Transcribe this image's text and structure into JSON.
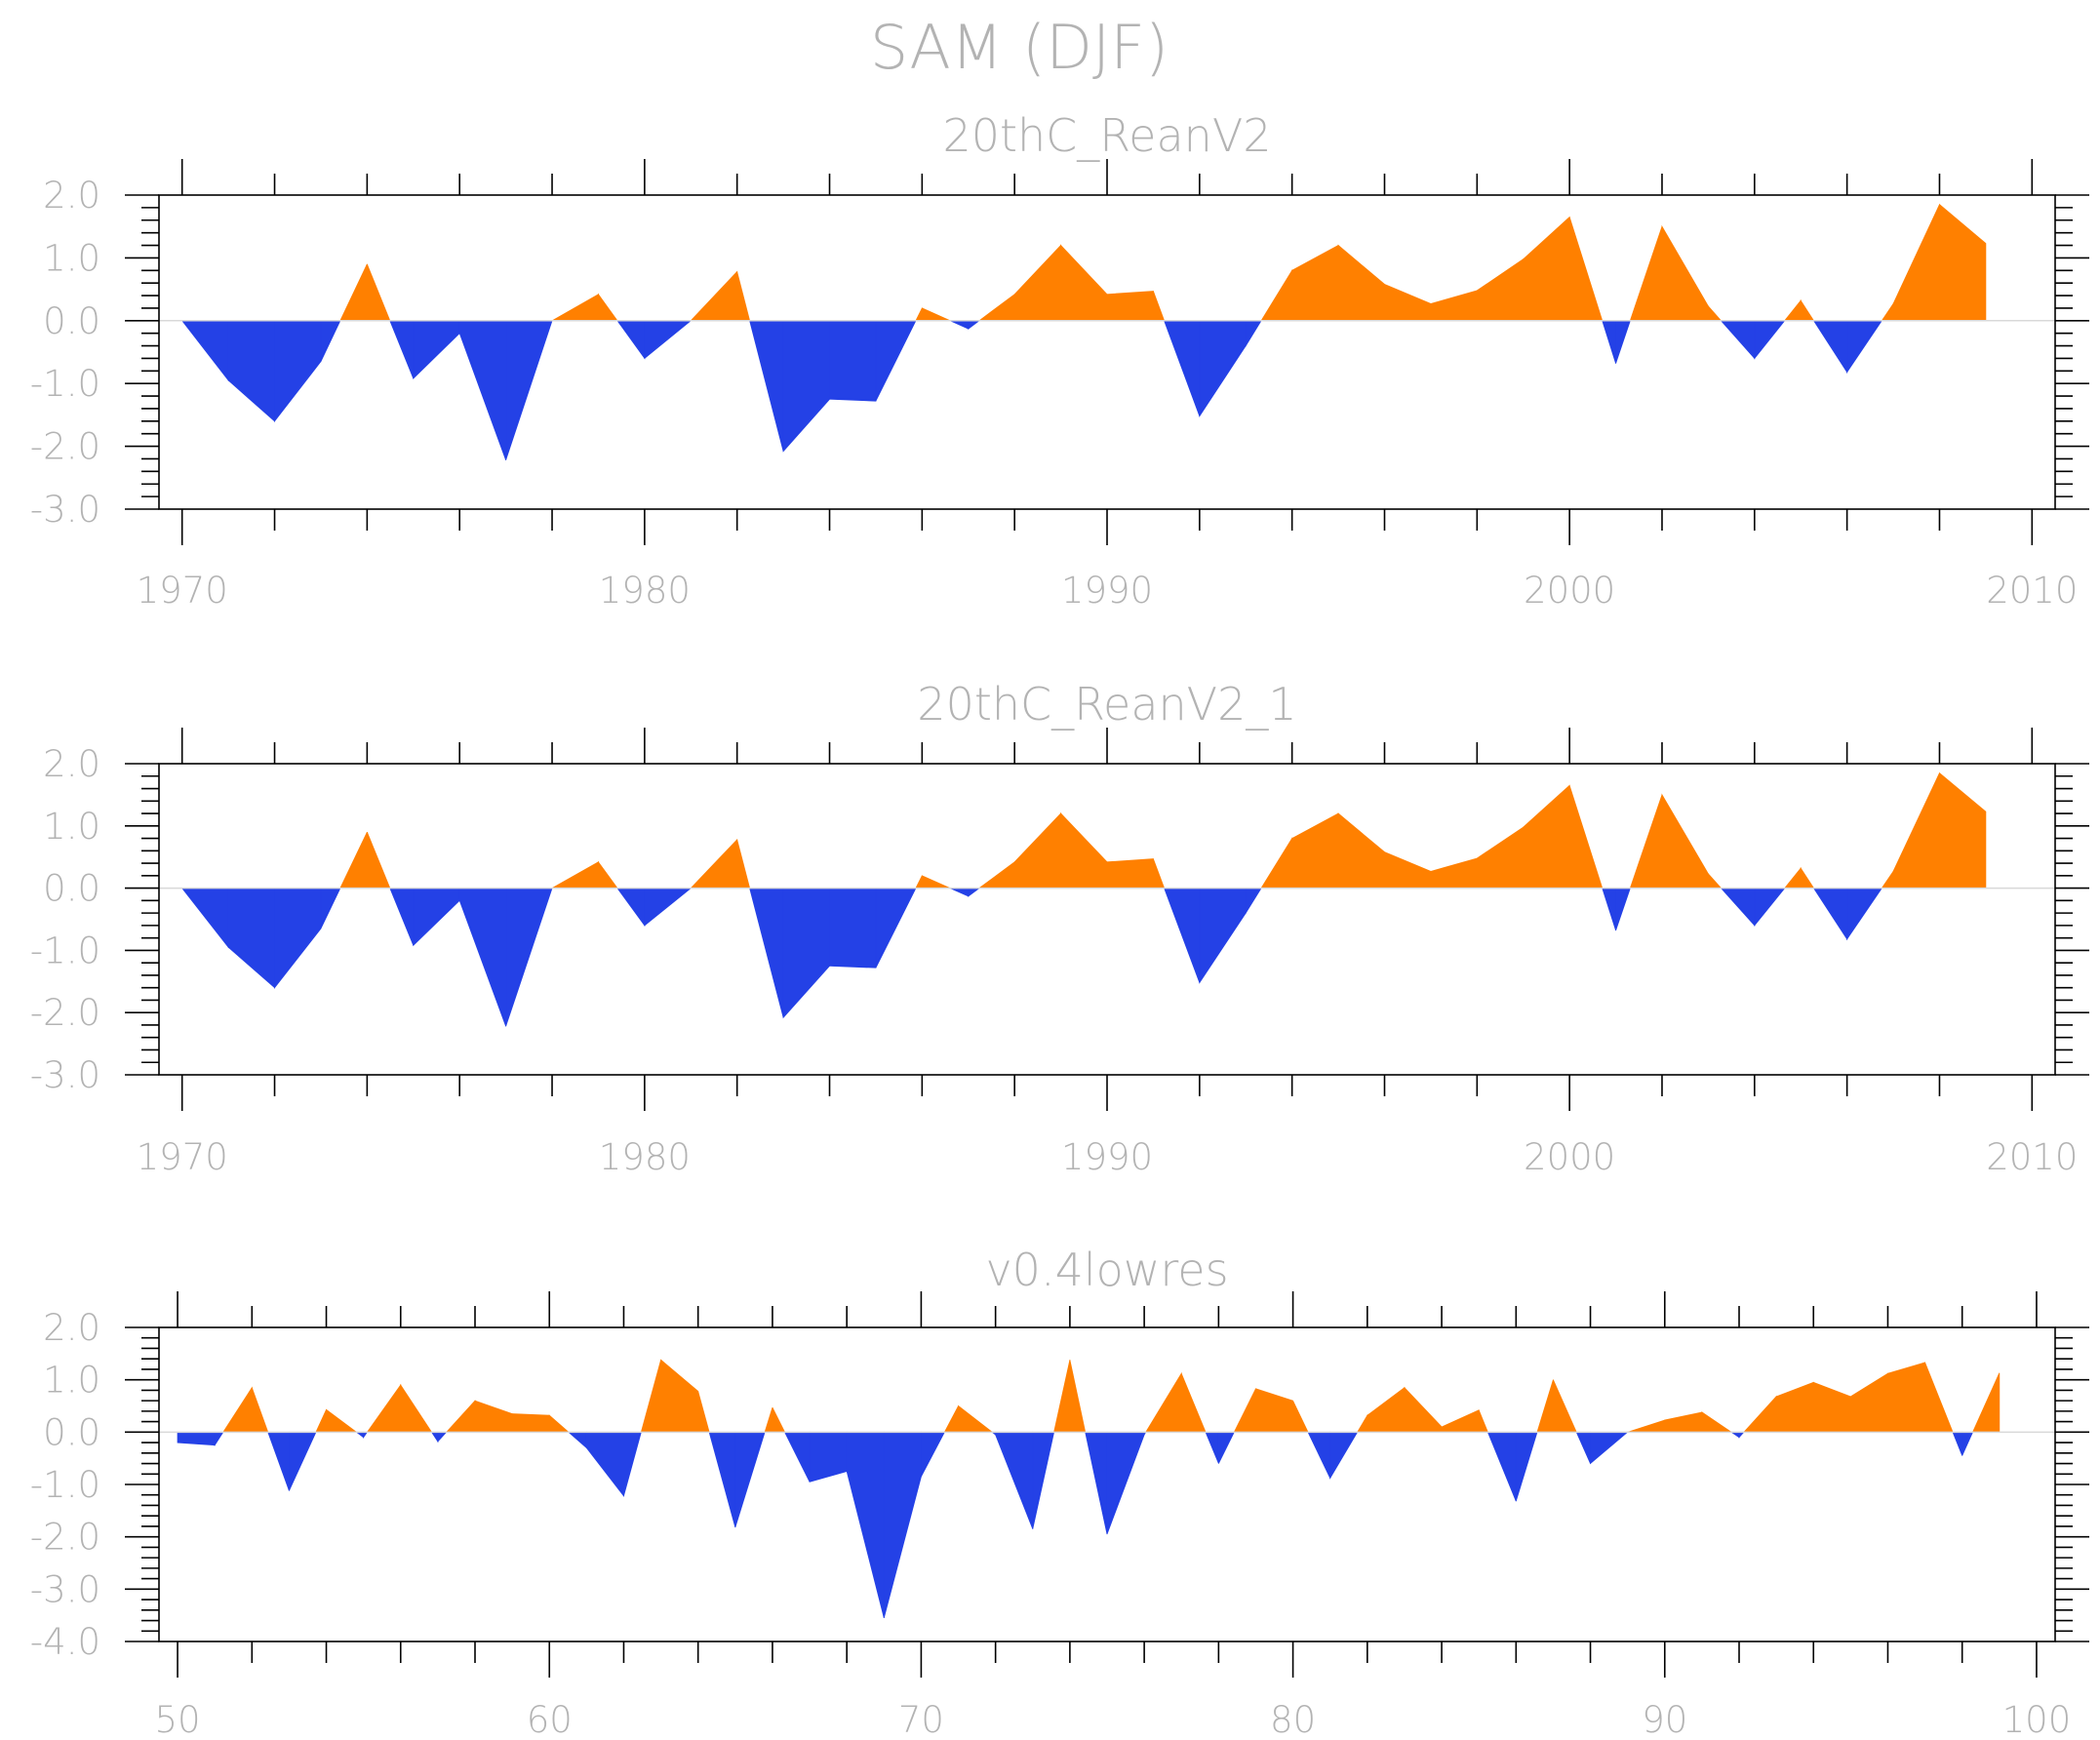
{
  "figure": {
    "title": "SAM (DJF)"
  },
  "colors": {
    "positive": "#ff8000",
    "negative": "#2441e6",
    "text": "#b3b3b3"
  },
  "chart_data": [
    {
      "type": "area",
      "title": "20thC_ReanV2",
      "xlim": [
        1969.5,
        2010.5
      ],
      "ylim": [
        -3.0,
        2.0
      ],
      "xticks": [
        1970,
        1980,
        1990,
        2000,
        2010
      ],
      "xtick_labels": [
        "1970",
        "1980",
        "1990",
        "2000",
        "2010"
      ],
      "yticks": [
        2.0,
        1.0,
        0.0,
        -1.0,
        -2.0,
        -3.0
      ],
      "ytick_labels": [
        "2.0",
        "1.0",
        "0.0",
        "-1.0",
        "-2.0",
        "-3.0"
      ],
      "x": [
        1970,
        1971,
        1972,
        1973,
        1974,
        1975,
        1976,
        1977,
        1978,
        1979,
        1980,
        1981,
        1982,
        1983,
        1984,
        1985,
        1986,
        1987,
        1988,
        1989,
        1990,
        1991,
        1992,
        1993,
        1994,
        1995,
        1996,
        1997,
        1998,
        1999,
        2000,
        2001,
        2002,
        2003,
        2004,
        2005,
        2006,
        2007,
        2008,
        2009
      ],
      "values": [
        0.0,
        -0.95,
        -1.6,
        -0.65,
        0.9,
        -0.92,
        -0.2,
        -2.22,
        0.0,
        0.42,
        -0.6,
        0.0,
        0.78,
        -2.08,
        -1.25,
        -1.28,
        0.2,
        -0.13,
        0.42,
        1.2,
        0.42,
        0.47,
        -1.52,
        -0.4,
        0.8,
        1.2,
        0.58,
        0.27,
        0.48,
        0.98,
        1.65,
        -0.68,
        1.5,
        0.23,
        -0.6,
        0.32,
        -0.82,
        0.27,
        1.85,
        1.23
      ]
    },
    {
      "type": "area",
      "title": "20thC_ReanV2_1",
      "xlim": [
        1969.5,
        2010.5
      ],
      "ylim": [
        -3.0,
        2.0
      ],
      "xticks": [
        1970,
        1980,
        1990,
        2000,
        2010
      ],
      "xtick_labels": [
        "1970",
        "1980",
        "1990",
        "2000",
        "2010"
      ],
      "yticks": [
        2.0,
        1.0,
        0.0,
        -1.0,
        -2.0,
        -3.0
      ],
      "ytick_labels": [
        "2.0",
        "1.0",
        "0.0",
        "-1.0",
        "-2.0",
        "-3.0"
      ],
      "x": [
        1970,
        1971,
        1972,
        1973,
        1974,
        1975,
        1976,
        1977,
        1978,
        1979,
        1980,
        1981,
        1982,
        1983,
        1984,
        1985,
        1986,
        1987,
        1988,
        1989,
        1990,
        1991,
        1992,
        1993,
        1994,
        1995,
        1996,
        1997,
        1998,
        1999,
        2000,
        2001,
        2002,
        2003,
        2004,
        2005,
        2006,
        2007,
        2008,
        2009
      ],
      "values": [
        0.0,
        -0.95,
        -1.6,
        -0.65,
        0.9,
        -0.92,
        -0.2,
        -2.22,
        0.0,
        0.42,
        -0.6,
        0.0,
        0.78,
        -2.08,
        -1.25,
        -1.28,
        0.2,
        -0.13,
        0.42,
        1.2,
        0.42,
        0.47,
        -1.52,
        -0.4,
        0.8,
        1.2,
        0.58,
        0.27,
        0.48,
        0.98,
        1.65,
        -0.68,
        1.5,
        0.23,
        -0.6,
        0.32,
        -0.82,
        0.27,
        1.85,
        1.23
      ]
    },
    {
      "type": "area",
      "title": "v0.4lowres",
      "xlim": [
        49.5,
        100.5
      ],
      "ylim": [
        -4.0,
        2.0
      ],
      "xticks": [
        50,
        60,
        70,
        80,
        90,
        100
      ],
      "xtick_labels": [
        "50",
        "60",
        "70",
        "80",
        "90",
        "100"
      ],
      "yticks": [
        2.0,
        1.0,
        0.0,
        -1.0,
        -2.0,
        -3.0,
        -4.0
      ],
      "ytick_labels": [
        "2.0",
        "1.0",
        "0.0",
        "-1.0",
        "-2.0",
        "-3.0",
        "-4.0"
      ],
      "x": [
        50,
        51,
        52,
        53,
        54,
        55,
        56,
        57,
        58,
        59,
        60,
        61,
        62,
        63,
        64,
        65,
        66,
        67,
        68,
        69,
        70,
        71,
        72,
        73,
        74,
        75,
        76,
        77,
        78,
        79,
        80,
        81,
        82,
        83,
        84,
        85,
        86,
        87,
        88,
        89,
        90,
        91,
        92,
        93,
        94,
        95,
        96,
        97,
        98,
        99
      ],
      "values": [
        -0.2,
        -0.25,
        0.85,
        -1.12,
        0.43,
        -0.1,
        0.9,
        -0.18,
        0.6,
        0.35,
        0.32,
        -0.3,
        -1.22,
        1.38,
        0.78,
        -1.82,
        0.47,
        -0.95,
        -0.75,
        -3.55,
        -0.85,
        0.5,
        -0.05,
        -1.85,
        1.38,
        -1.95,
        -0.05,
        1.12,
        -0.6,
        0.83,
        0.6,
        -0.88,
        0.32,
        0.85,
        0.1,
        0.42,
        -1.32,
        1.0,
        -0.6,
        0.0,
        0.23,
        0.38,
        -0.1,
        0.68,
        0.95,
        0.68,
        1.12,
        1.33,
        -0.45,
        1.13
      ]
    }
  ]
}
